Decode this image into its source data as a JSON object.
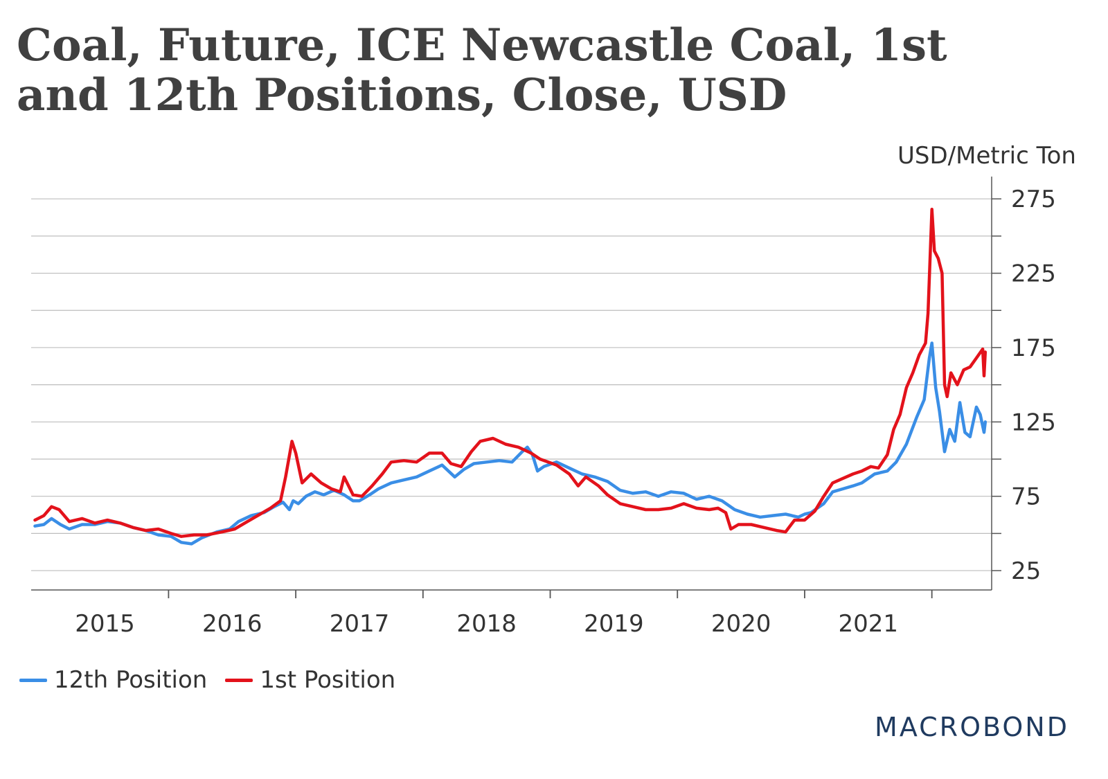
{
  "chart_data": {
    "type": "line",
    "title": "Coal, Future, ICE Newcastle Coal, 1st and 12th Positions, Close, USD",
    "title_lines": [
      "Coal, Future, ICE Newcastle Coal, 1st",
      "and 12th Positions, Close, USD"
    ],
    "ylabel": "USD/Metric Ton",
    "xlabel": "",
    "ylim": [
      12,
      290
    ],
    "xlim": [
      2014.42,
      2021.97
    ],
    "y_ticks": [
      25,
      75,
      125,
      175,
      225,
      275
    ],
    "y_minor_ticks": [
      50,
      100,
      150,
      200,
      250
    ],
    "x_ticks": [
      {
        "label": "2015",
        "value": 2015
      },
      {
        "label": "2016",
        "value": 2016
      },
      {
        "label": "2017",
        "value": 2017
      },
      {
        "label": "2018",
        "value": 2018
      },
      {
        "label": "2019",
        "value": 2019
      },
      {
        "label": "2020",
        "value": 2020
      },
      {
        "label": "2021",
        "value": 2021
      }
    ],
    "x_separators": [
      2015.5,
      2016.5,
      2017.5,
      2018.5,
      2019.5,
      2020.5,
      2021.5
    ],
    "series": [
      {
        "name": "12th Position",
        "color": "#3a8ee6",
        "points": [
          [
            2014.45,
            55
          ],
          [
            2014.52,
            56
          ],
          [
            2014.58,
            60
          ],
          [
            2014.65,
            56
          ],
          [
            2014.72,
            53
          ],
          [
            2014.82,
            56
          ],
          [
            2014.92,
            56
          ],
          [
            2015.02,
            58
          ],
          [
            2015.12,
            57
          ],
          [
            2015.22,
            54
          ],
          [
            2015.32,
            52
          ],
          [
            2015.42,
            49
          ],
          [
            2015.52,
            48
          ],
          [
            2015.6,
            44
          ],
          [
            2015.68,
            43
          ],
          [
            2015.76,
            47
          ],
          [
            2015.88,
            51
          ],
          [
            2015.98,
            53
          ],
          [
            2016.05,
            58
          ],
          [
            2016.15,
            62
          ],
          [
            2016.25,
            64
          ],
          [
            2016.33,
            68
          ],
          [
            2016.4,
            71
          ],
          [
            2016.45,
            66
          ],
          [
            2016.48,
            72
          ],
          [
            2016.52,
            70
          ],
          [
            2016.58,
            75
          ],
          [
            2016.65,
            78
          ],
          [
            2016.72,
            76
          ],
          [
            2016.8,
            79
          ],
          [
            2016.88,
            76
          ],
          [
            2016.95,
            72
          ],
          [
            2017.0,
            72
          ],
          [
            2017.08,
            76
          ],
          [
            2017.15,
            80
          ],
          [
            2017.25,
            84
          ],
          [
            2017.35,
            86
          ],
          [
            2017.45,
            88
          ],
          [
            2017.55,
            92
          ],
          [
            2017.65,
            96
          ],
          [
            2017.75,
            88
          ],
          [
            2017.82,
            93
          ],
          [
            2017.9,
            97
          ],
          [
            2018.0,
            98
          ],
          [
            2018.1,
            99
          ],
          [
            2018.2,
            98
          ],
          [
            2018.28,
            105
          ],
          [
            2018.32,
            108
          ],
          [
            2018.36,
            103
          ],
          [
            2018.4,
            92
          ],
          [
            2018.45,
            95
          ],
          [
            2018.55,
            98
          ],
          [
            2018.65,
            94
          ],
          [
            2018.75,
            90
          ],
          [
            2018.85,
            88
          ],
          [
            2018.95,
            85
          ],
          [
            2019.05,
            79
          ],
          [
            2019.15,
            77
          ],
          [
            2019.25,
            78
          ],
          [
            2019.35,
            75
          ],
          [
            2019.45,
            78
          ],
          [
            2019.55,
            77
          ],
          [
            2019.65,
            73
          ],
          [
            2019.75,
            75
          ],
          [
            2019.85,
            72
          ],
          [
            2019.95,
            66
          ],
          [
            2020.05,
            63
          ],
          [
            2020.15,
            61
          ],
          [
            2020.25,
            62
          ],
          [
            2020.35,
            63
          ],
          [
            2020.45,
            61
          ],
          [
            2020.5,
            63
          ],
          [
            2020.55,
            64
          ],
          [
            2020.65,
            70
          ],
          [
            2020.72,
            78
          ],
          [
            2020.8,
            80
          ],
          [
            2020.88,
            82
          ],
          [
            2020.95,
            84
          ],
          [
            2021.05,
            90
          ],
          [
            2021.15,
            92
          ],
          [
            2021.22,
            98
          ],
          [
            2021.3,
            110
          ],
          [
            2021.38,
            128
          ],
          [
            2021.44,
            140
          ],
          [
            2021.48,
            168
          ],
          [
            2021.5,
            178
          ],
          [
            2021.53,
            148
          ],
          [
            2021.56,
            132
          ],
          [
            2021.6,
            105
          ],
          [
            2021.64,
            120
          ],
          [
            2021.68,
            112
          ],
          [
            2021.72,
            138
          ],
          [
            2021.76,
            118
          ],
          [
            2021.8,
            115
          ],
          [
            2021.85,
            135
          ],
          [
            2021.88,
            130
          ],
          [
            2021.91,
            118
          ],
          [
            2021.92,
            125
          ]
        ]
      },
      {
        "name": "1st Position",
        "color": "#e3121b",
        "points": [
          [
            2014.45,
            59
          ],
          [
            2014.52,
            62
          ],
          [
            2014.58,
            68
          ],
          [
            2014.64,
            66
          ],
          [
            2014.72,
            58
          ],
          [
            2014.82,
            60
          ],
          [
            2014.92,
            57
          ],
          [
            2015.02,
            59
          ],
          [
            2015.12,
            57
          ],
          [
            2015.22,
            54
          ],
          [
            2015.32,
            52
          ],
          [
            2015.42,
            53
          ],
          [
            2015.52,
            50
          ],
          [
            2015.6,
            48
          ],
          [
            2015.7,
            49
          ],
          [
            2015.8,
            49
          ],
          [
            2015.92,
            51
          ],
          [
            2016.02,
            53
          ],
          [
            2016.12,
            58
          ],
          [
            2016.22,
            63
          ],
          [
            2016.3,
            67
          ],
          [
            2016.38,
            72
          ],
          [
            2016.42,
            88
          ],
          [
            2016.47,
            112
          ],
          [
            2016.5,
            104
          ],
          [
            2016.55,
            84
          ],
          [
            2016.62,
            90
          ],
          [
            2016.7,
            84
          ],
          [
            2016.78,
            80
          ],
          [
            2016.85,
            78
          ],
          [
            2016.88,
            88
          ],
          [
            2016.95,
            76
          ],
          [
            2017.02,
            75
          ],
          [
            2017.1,
            82
          ],
          [
            2017.18,
            90
          ],
          [
            2017.25,
            98
          ],
          [
            2017.35,
            99
          ],
          [
            2017.45,
            98
          ],
          [
            2017.55,
            104
          ],
          [
            2017.65,
            104
          ],
          [
            2017.72,
            97
          ],
          [
            2017.8,
            95
          ],
          [
            2017.88,
            105
          ],
          [
            2017.95,
            112
          ],
          [
            2018.05,
            114
          ],
          [
            2018.15,
            110
          ],
          [
            2018.25,
            108
          ],
          [
            2018.35,
            104
          ],
          [
            2018.42,
            100
          ],
          [
            2018.55,
            96
          ],
          [
            2018.65,
            90
          ],
          [
            2018.72,
            82
          ],
          [
            2018.78,
            88
          ],
          [
            2018.88,
            82
          ],
          [
            2018.95,
            76
          ],
          [
            2019.05,
            70
          ],
          [
            2019.15,
            68
          ],
          [
            2019.25,
            66
          ],
          [
            2019.35,
            66
          ],
          [
            2019.45,
            67
          ],
          [
            2019.55,
            70
          ],
          [
            2019.65,
            67
          ],
          [
            2019.75,
            66
          ],
          [
            2019.82,
            67
          ],
          [
            2019.88,
            64
          ],
          [
            2019.92,
            53
          ],
          [
            2019.98,
            56
          ],
          [
            2020.08,
            56
          ],
          [
            2020.18,
            54
          ],
          [
            2020.28,
            52
          ],
          [
            2020.35,
            51
          ],
          [
            2020.42,
            59
          ],
          [
            2020.5,
            59
          ],
          [
            2020.58,
            65
          ],
          [
            2020.65,
            75
          ],
          [
            2020.72,
            84
          ],
          [
            2020.8,
            87
          ],
          [
            2020.88,
            90
          ],
          [
            2020.95,
            92
          ],
          [
            2021.02,
            95
          ],
          [
            2021.08,
            94
          ],
          [
            2021.15,
            103
          ],
          [
            2021.2,
            120
          ],
          [
            2021.25,
            130
          ],
          [
            2021.3,
            148
          ],
          [
            2021.35,
            158
          ],
          [
            2021.4,
            170
          ],
          [
            2021.45,
            178
          ],
          [
            2021.47,
            198
          ],
          [
            2021.5,
            268
          ],
          [
            2021.52,
            240
          ],
          [
            2021.55,
            235
          ],
          [
            2021.58,
            225
          ],
          [
            2021.6,
            150
          ],
          [
            2021.62,
            142
          ],
          [
            2021.65,
            158
          ],
          [
            2021.7,
            150
          ],
          [
            2021.75,
            160
          ],
          [
            2021.8,
            162
          ],
          [
            2021.85,
            168
          ],
          [
            2021.9,
            174
          ],
          [
            2021.91,
            156
          ],
          [
            2021.92,
            172
          ]
        ]
      }
    ],
    "legend": "bottom-left"
  },
  "footer": {
    "brand": "MACROBOND"
  }
}
